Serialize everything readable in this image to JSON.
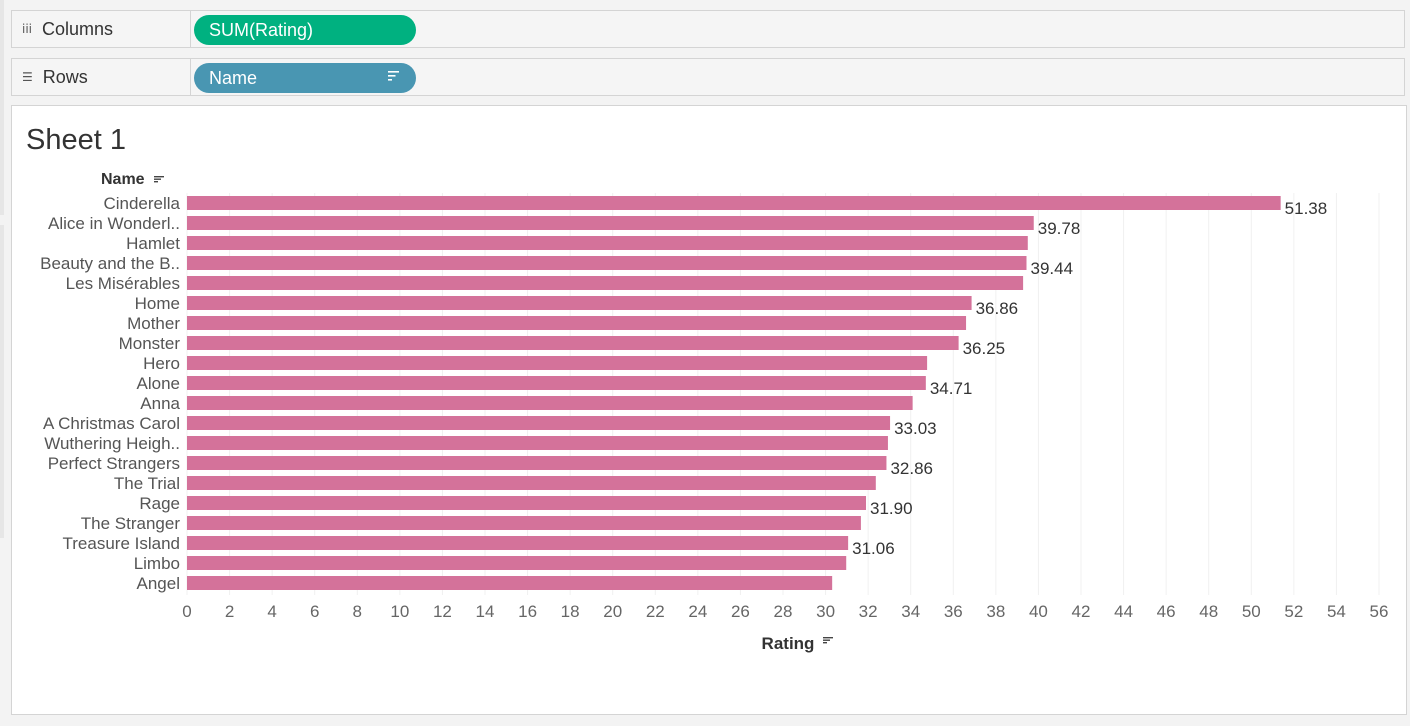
{
  "columns_shelf": {
    "label": "Columns",
    "icon": "columns-icon",
    "pill": "SUM(Rating)",
    "pill_color": "#00b180"
  },
  "rows_shelf": {
    "label": "Rows",
    "icon": "rows-icon",
    "pill": "Name",
    "pill_color": "#4996b2"
  },
  "sheet": {
    "title": "Sheet 1"
  },
  "chart_data": {
    "type": "bar",
    "orientation": "horizontal",
    "row_header": "Name",
    "xlabel": "Rating",
    "xlim": [
      0,
      56
    ],
    "xticks": [
      0,
      2,
      4,
      6,
      8,
      10,
      12,
      14,
      16,
      18,
      20,
      22,
      24,
      26,
      28,
      30,
      32,
      34,
      36,
      38,
      40,
      42,
      44,
      46,
      48,
      50,
      52,
      54,
      56
    ],
    "bar_color": "#d4729a",
    "grid": true,
    "categories": [
      "Cinderella",
      "Alice in Wonderl..",
      "Hamlet",
      "Beauty and the B..",
      "Les Misérables",
      "Home",
      "Mother",
      "Monster",
      "Hero",
      "Alone",
      "Anna",
      "A Christmas Carol",
      "Wuthering Heigh..",
      "Perfect Strangers",
      "The Trial",
      "Rage",
      "The Stranger",
      "Treasure Island",
      "Limbo",
      "Angel"
    ],
    "values": [
      51.38,
      39.78,
      39.5,
      39.44,
      39.28,
      36.86,
      36.6,
      36.25,
      34.77,
      34.71,
      34.09,
      33.03,
      32.93,
      32.86,
      32.36,
      31.9,
      31.66,
      31.06,
      30.97,
      30.31
    ],
    "data_labels": [
      "51.38",
      "39.78",
      "",
      "39.44",
      "",
      "36.86",
      "",
      "36.25",
      "",
      "34.71",
      "",
      "33.03",
      "",
      "32.86",
      "",
      "31.90",
      "",
      "31.06",
      "",
      ""
    ]
  }
}
